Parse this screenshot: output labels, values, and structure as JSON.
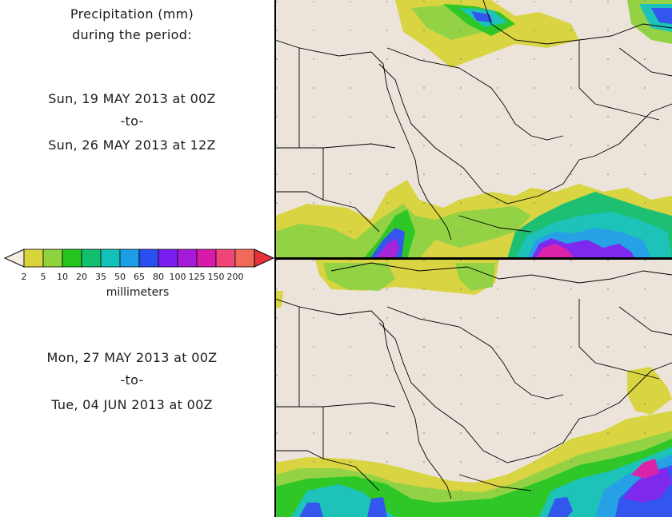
{
  "header": {
    "line1": "Precipitation (mm)",
    "line2": "during the period:"
  },
  "period1": {
    "start": "Sun, 19 MAY 2013 at 00Z",
    "sep": "-to-",
    "end": "Sun, 26 MAY 2013 at 12Z"
  },
  "period2": {
    "start": "Mon, 27 MAY 2013 at 00Z",
    "sep": "-to-",
    "end": "Tue, 04 JUN 2013 at 00Z"
  },
  "legend": {
    "unit": "millimeters",
    "ticks": [
      "2",
      "5",
      "10",
      "20",
      "35",
      "50",
      "65",
      "80",
      "100",
      "125",
      "150",
      "200"
    ],
    "colors": [
      "#d8d43a",
      "#8fd23e",
      "#25c51e",
      "#12bf6e",
      "#12c2b8",
      "#1c9ee6",
      "#2a4ff0",
      "#7a1ff0",
      "#a51ad8",
      "#d81aa8",
      "#f0457a",
      "#f06a5a"
    ],
    "under_color": "#f3ecdf",
    "over_color": "#e8323a"
  }
}
